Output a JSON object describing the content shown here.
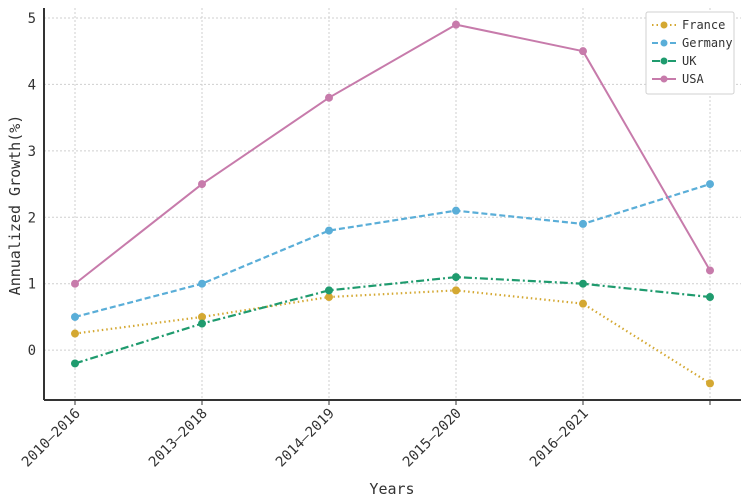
{
  "chart_data": {
    "type": "line",
    "title": "",
    "xlabel": "Years",
    "ylabel": "Annualized Growth(%)",
    "categories": [
      "2010—2016",
      "2013—2018",
      "2014—2019",
      "2015—2020",
      "2016—2021",
      ""
    ],
    "ylim": [
      -0.75,
      5.15
    ],
    "yticks": [
      0,
      1,
      2,
      3,
      4,
      5
    ],
    "grid": true,
    "legend_position": "top-right",
    "series": [
      {
        "name": "France",
        "color": "#d4a832",
        "dash": "dotted",
        "values": [
          0.25,
          0.5,
          0.8,
          0.9,
          0.7,
          -0.5
        ]
      },
      {
        "name": "Germany",
        "color": "#5aaed8",
        "dash": "dashed",
        "values": [
          0.5,
          1.0,
          1.8,
          2.1,
          1.9,
          2.5
        ]
      },
      {
        "name": "UK",
        "color": "#1f9b6e",
        "dash": "dashdot",
        "values": [
          -0.2,
          0.4,
          0.9,
          1.1,
          1.0,
          0.8
        ]
      },
      {
        "name": "USA",
        "color": "#c77bab",
        "dash": "solid",
        "values": [
          1.0,
          2.5,
          3.8,
          4.9,
          4.5,
          1.2
        ]
      }
    ]
  }
}
